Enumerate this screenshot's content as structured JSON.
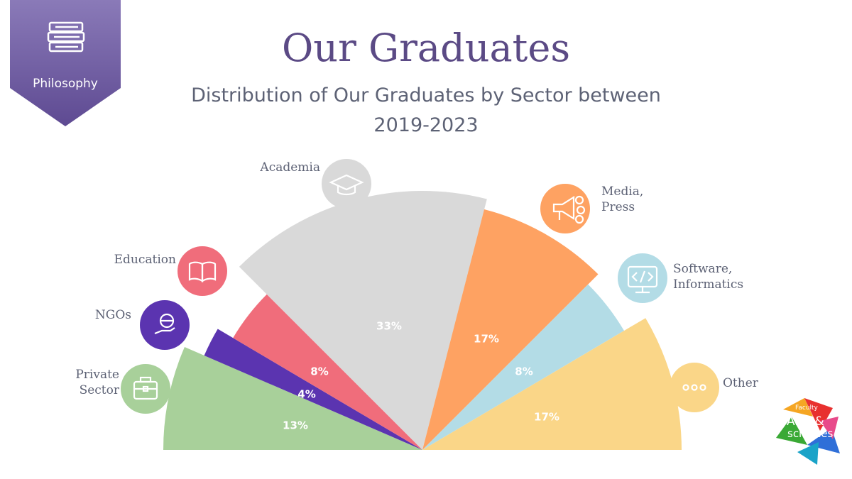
{
  "badge": {
    "label": "Philosophy",
    "icon": "books-icon"
  },
  "title": "Our Graduates",
  "subtitle_line1": "Distribution of Our Graduates by Sector between",
  "subtitle_line2": "2019-2023",
  "logo": {
    "small": "Faculty",
    "line1": "Arts &",
    "line2": "sciences"
  },
  "chart_data": {
    "type": "pie",
    "variant": "semicircle",
    "title": "Distribution of Our Graduates by Sector between 2019-2023",
    "slices": [
      {
        "label": [
          "Private",
          "Sector"
        ],
        "value": 13,
        "display": "13%",
        "color": "#a8d09a",
        "icon": "briefcase-icon"
      },
      {
        "label": [
          "NGOs"
        ],
        "value": 4,
        "display": "4%",
        "color": "#5b34b0",
        "icon": "hand-globe-icon"
      },
      {
        "label": [
          "Education"
        ],
        "value": 8,
        "display": "8%",
        "color": "#f06d7b",
        "icon": "open-book-icon"
      },
      {
        "label": [
          "Academia"
        ],
        "value": 33,
        "display": "33%",
        "color": "#d9d9d9",
        "icon": "graduation-cap-icon"
      },
      {
        "label": [
          "Media,",
          "Press"
        ],
        "value": 17,
        "display": "17%",
        "color": "#fea262",
        "icon": "megaphone-icon"
      },
      {
        "label": [
          "Software,",
          "Informatics"
        ],
        "value": 8,
        "display": "8%",
        "color": "#b3dce6",
        "icon": "code-monitor-icon"
      },
      {
        "label": [
          "Other"
        ],
        "value": 17,
        "display": "17%",
        "color": "#fad688",
        "icon": "more-dots-icon"
      }
    ]
  }
}
